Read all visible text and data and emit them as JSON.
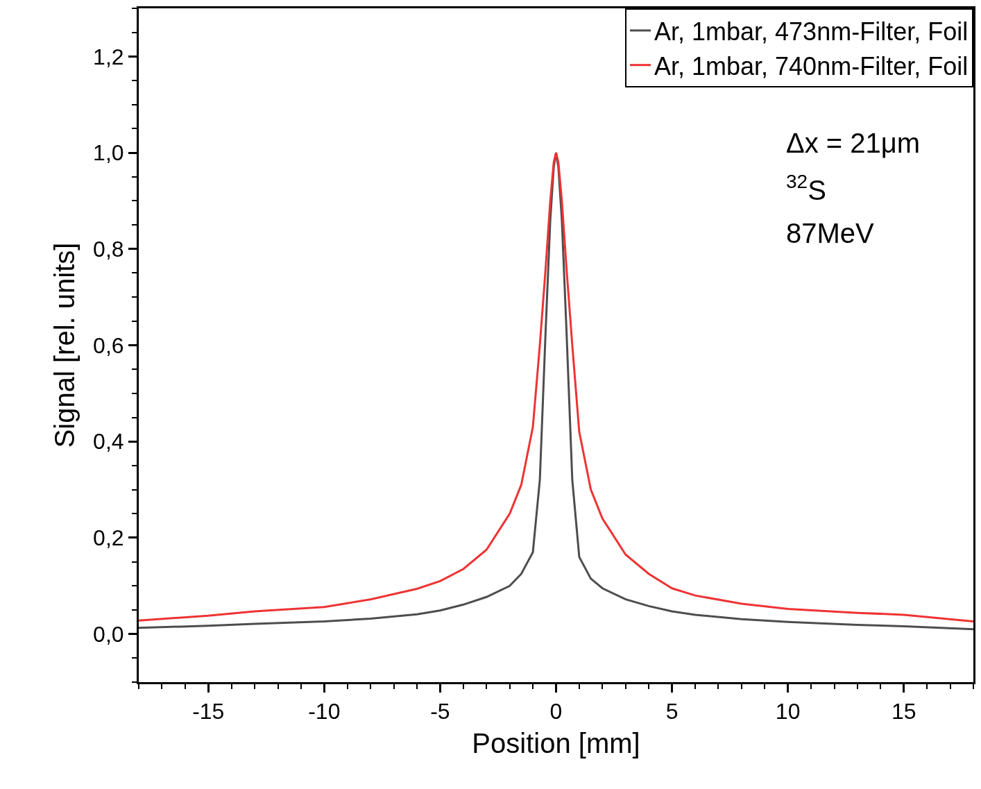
{
  "chart_data": {
    "type": "line",
    "xlabel": "Position [mm]",
    "ylabel": "Signal [rel. units]",
    "x": [
      -18,
      -15,
      -13,
      -10,
      -8,
      -6,
      -5,
      -4,
      -3,
      -2,
      -1.5,
      -1,
      -0.7,
      -0.45,
      -0.25,
      -0.1,
      0,
      0.1,
      0.25,
      0.45,
      0.7,
      1,
      1.5,
      2,
      3,
      4,
      5,
      6,
      8,
      10,
      13,
      15,
      18
    ],
    "series": [
      {
        "name": "Ar, 1mbar, 473nm-Filter, Foil",
        "color": "#4d4d4d",
        "values": [
          0.013,
          0.017,
          0.021,
          0.026,
          0.032,
          0.041,
          0.049,
          0.061,
          0.077,
          0.1,
          0.125,
          0.17,
          0.32,
          0.63,
          0.86,
          0.97,
          1.0,
          0.97,
          0.86,
          0.63,
          0.32,
          0.16,
          0.115,
          0.095,
          0.072,
          0.058,
          0.047,
          0.04,
          0.031,
          0.025,
          0.019,
          0.016,
          0.01
        ]
      },
      {
        "name": "Ar, 1mbar, 740nm-Filter, Foil",
        "color": "#ee3333",
        "values": [
          0.028,
          0.038,
          0.047,
          0.056,
          0.072,
          0.094,
          0.11,
          0.135,
          0.175,
          0.25,
          0.31,
          0.43,
          0.6,
          0.76,
          0.9,
          0.98,
          1.0,
          0.98,
          0.9,
          0.76,
          0.6,
          0.42,
          0.3,
          0.24,
          0.165,
          0.125,
          0.095,
          0.08,
          0.063,
          0.052,
          0.044,
          0.04,
          0.026
        ]
      }
    ],
    "xlim": [
      -18,
      18
    ],
    "xticks": [
      -15,
      -10,
      -5,
      0,
      5,
      10,
      15
    ],
    "ylim": [
      -0.1,
      1.3
    ],
    "yticks": [
      {
        "value": 0,
        "label": "0,0"
      },
      {
        "value": 0.2,
        "label": "0,2"
      },
      {
        "value": 0.4,
        "label": "0,4"
      },
      {
        "value": 0.6,
        "label": "0,6"
      },
      {
        "value": 0.8,
        "label": "0,8"
      },
      {
        "value": 1.0,
        "label": "1,0"
      },
      {
        "value": 1.2,
        "label": "1,2"
      }
    ],
    "annotations": [
      "Δx = 21μm",
      "$^{32}$S",
      "87MeV"
    ],
    "legend": "top right",
    "marker": "none",
    "line_style": "solid"
  }
}
